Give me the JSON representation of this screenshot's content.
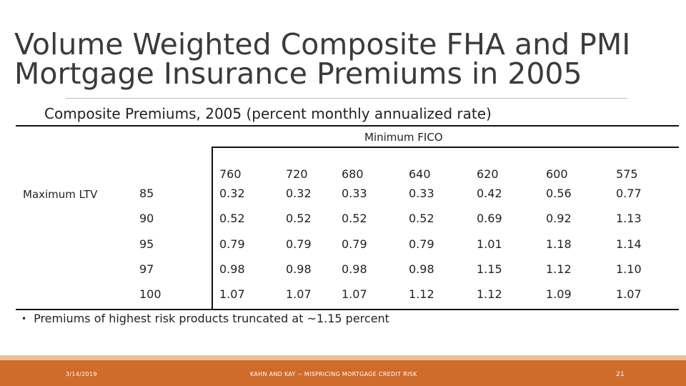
{
  "title": "Volume Weighted Composite FHA and PMI Mortgage Insurance Premiums in 2005",
  "subtitle": "Composite Premiums, 2005 (percent monthly annualized rate)",
  "table": {
    "column_group_label": "Minimum FICO",
    "row_group_label": "Maximum LTV",
    "columns": [
      "760",
      "720",
      "680",
      "640",
      "620",
      "600",
      "575"
    ],
    "rows": [
      {
        "ltv": "85",
        "values": [
          "0.32",
          "0.32",
          "0.33",
          "0.33",
          "0.42",
          "0.56",
          "0.77"
        ]
      },
      {
        "ltv": "90",
        "values": [
          "0.52",
          "0.52",
          "0.52",
          "0.52",
          "0.69",
          "0.92",
          "1.13"
        ]
      },
      {
        "ltv": "95",
        "values": [
          "0.79",
          "0.79",
          "0.79",
          "0.79",
          "1.01",
          "1.18",
          "1.14"
        ]
      },
      {
        "ltv": "97",
        "values": [
          "0.98",
          "0.98",
          "0.98",
          "0.98",
          "1.15",
          "1.12",
          "1.10"
        ]
      },
      {
        "ltv": "100",
        "values": [
          "1.07",
          "1.07",
          "1.07",
          "1.12",
          "1.12",
          "1.09",
          "1.07"
        ]
      }
    ]
  },
  "note": "Premiums of highest risk products truncated at ~1.15 percent",
  "footer": {
    "date": "3/14/2019",
    "center_text": "KAHN AND KAY -- MISPRICING MORTGAGE CREDIT RISK",
    "page_number": "21"
  },
  "colors": {
    "footer": "#cf6b2b",
    "footer_accent": "#e8c39a",
    "title": "#3b3b3b"
  }
}
